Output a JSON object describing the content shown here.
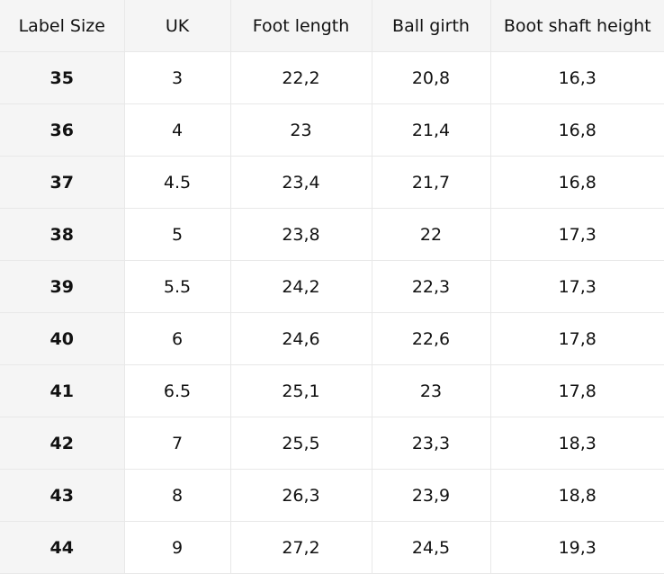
{
  "headers": [
    "Label Size",
    "UK",
    "Foot length",
    "Ball girth",
    "Boot shaft height"
  ],
  "rows": [
    [
      "35",
      "3",
      "22,2",
      "20,8",
      "16,3"
    ],
    [
      "36",
      "4",
      "23",
      "21,4",
      "16,8"
    ],
    [
      "37",
      "4.5",
      "23,4",
      "21,7",
      "16,8"
    ],
    [
      "38",
      "5",
      "23,8",
      "22",
      "17,3"
    ],
    [
      "39",
      "5.5",
      "24,2",
      "22,3",
      "17,3"
    ],
    [
      "40",
      "6",
      "24,6",
      "22,6",
      "17,8"
    ],
    [
      "41",
      "6.5",
      "25,1",
      "23",
      "17,8"
    ],
    [
      "42",
      "7",
      "25,5",
      "23,3",
      "18,3"
    ],
    [
      "43",
      "8",
      "26,3",
      "23,9",
      "18,8"
    ],
    [
      "44",
      "9",
      "27,2",
      "24,5",
      "19,3"
    ]
  ]
}
